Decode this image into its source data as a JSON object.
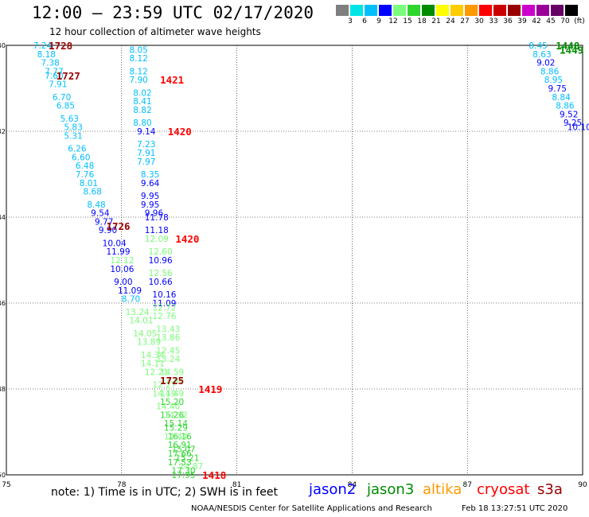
{
  "title": "12:00 — 23:59 UTC 02/17/2020",
  "subtitle": "12 hour collection of altimeter wave heights",
  "colorbar": {
    "unit": "(ft)",
    "labels": [
      "3",
      "6",
      "9",
      "12",
      "15",
      "18",
      "21",
      "24",
      "27",
      "30",
      "33",
      "36",
      "39",
      "42",
      "45",
      "70"
    ],
    "colors": [
      "#7f7f7f",
      "#00e5e5",
      "#00bfff",
      "#0000ff",
      "#7cfc7c",
      "#2ed62e",
      "#008c00",
      "#ffff00",
      "#ffcc00",
      "#ff9900",
      "#ff0000",
      "#cc0000",
      "#990000",
      "#cc00cc",
      "#990099",
      "#660066",
      "#000000"
    ]
  },
  "chart_data": {
    "type": "scatter",
    "title": "",
    "xlabel": "",
    "ylabel": "",
    "x_ticks": [
      "75",
      "78",
      "81",
      "84",
      "87",
      "90"
    ],
    "y_ticks": [
      "-40",
      "-42",
      "-44",
      "-46",
      "-48",
      "-50"
    ],
    "xlim": [
      75,
      90
    ],
    "ylim": [
      -50,
      -40
    ],
    "grid": true,
    "series": [
      {
        "name": "track-left",
        "points": [
          {
            "lon": 75.7,
            "lat": -40.0,
            "v": "7.24",
            "c": "#00bfff"
          },
          {
            "lon": 75.8,
            "lat": -40.2,
            "v": "8.18",
            "c": "#00bfff"
          },
          {
            "lon": 75.9,
            "lat": -40.4,
            "v": "7.38",
            "c": "#00bfff"
          },
          {
            "lon": 76.0,
            "lat": -40.6,
            "v": "7.77",
            "c": "#00bfff"
          },
          {
            "lon": 76.0,
            "lat": -40.7,
            "v": "7.60",
            "c": "#00bfff"
          },
          {
            "lon": 76.1,
            "lat": -40.9,
            "v": "7.91",
            "c": "#00bfff"
          },
          {
            "lon": 76.2,
            "lat": -41.2,
            "v": "6.70",
            "c": "#00bfff"
          },
          {
            "lon": 76.3,
            "lat": -41.4,
            "v": "6.85",
            "c": "#00bfff"
          },
          {
            "lon": 76.4,
            "lat": -41.7,
            "v": "5.63",
            "c": "#00bfff"
          },
          {
            "lon": 76.5,
            "lat": -41.9,
            "v": "5.83",
            "c": "#00bfff"
          },
          {
            "lon": 76.5,
            "lat": -42.1,
            "v": "5.31",
            "c": "#00bfff"
          },
          {
            "lon": 76.6,
            "lat": -42.4,
            "v": "6.26",
            "c": "#00bfff"
          },
          {
            "lon": 76.7,
            "lat": -42.6,
            "v": "6.60",
            "c": "#00bfff"
          },
          {
            "lon": 76.8,
            "lat": -42.8,
            "v": "6.48",
            "c": "#00bfff"
          },
          {
            "lon": 76.8,
            "lat": -43.0,
            "v": "7.76",
            "c": "#00bfff"
          },
          {
            "lon": 76.9,
            "lat": -43.2,
            "v": "8.01",
            "c": "#00bfff"
          },
          {
            "lon": 77.0,
            "lat": -43.4,
            "v": "8.68",
            "c": "#00bfff"
          },
          {
            "lon": 77.1,
            "lat": -43.7,
            "v": "8.48",
            "c": "#00bfff"
          },
          {
            "lon": 77.2,
            "lat": -43.9,
            "v": "9.54",
            "c": "#0000ff"
          },
          {
            "lon": 77.3,
            "lat": -44.1,
            "v": "9.77",
            "c": "#0000ff"
          },
          {
            "lon": 77.4,
            "lat": -44.3,
            "v": "9.90",
            "c": "#0000ff"
          },
          {
            "lon": 77.5,
            "lat": -44.6,
            "v": "10.04",
            "c": "#0000ff"
          },
          {
            "lon": 77.6,
            "lat": -44.8,
            "v": "11.99",
            "c": "#0000ff"
          },
          {
            "lon": 77.7,
            "lat": -45.0,
            "v": "12.12",
            "c": "#7cfc7c"
          },
          {
            "lon": 77.7,
            "lat": -45.2,
            "v": "10.06",
            "c": "#0000ff"
          },
          {
            "lon": 77.8,
            "lat": -45.5,
            "v": "9.00",
            "c": "#0000ff"
          },
          {
            "lon": 77.9,
            "lat": -45.7,
            "v": "11.09",
            "c": "#0000ff"
          },
          {
            "lon": 78.0,
            "lat": -45.9,
            "v": "8.70",
            "c": "#00bfff"
          },
          {
            "lon": 78.1,
            "lat": -46.2,
            "v": "13.24",
            "c": "#7cfc7c"
          },
          {
            "lon": 78.2,
            "lat": -46.4,
            "v": "14.01",
            "c": "#7cfc7c"
          },
          {
            "lon": 78.3,
            "lat": -46.7,
            "v": "14.05",
            "c": "#7cfc7c"
          },
          {
            "lon": 78.4,
            "lat": -46.9,
            "v": "13.89",
            "c": "#7cfc7c"
          },
          {
            "lon": 78.5,
            "lat": -47.2,
            "v": "14.34",
            "c": "#7cfc7c"
          },
          {
            "lon": 78.5,
            "lat": -47.4,
            "v": "14.11",
            "c": "#7cfc7c"
          },
          {
            "lon": 78.6,
            "lat": -47.6,
            "v": "12.21",
            "c": "#7cfc7c"
          },
          {
            "lon": 78.8,
            "lat": -47.9,
            "v": "12.27",
            "c": "#7cfc7c"
          },
          {
            "lon": 78.8,
            "lat": -48.1,
            "v": "14.19",
            "c": "#7cfc7c"
          },
          {
            "lon": 78.9,
            "lat": -48.4,
            "v": "14.40",
            "c": "#7cfc7c"
          },
          {
            "lon": 79.0,
            "lat": -48.6,
            "v": "15.26",
            "c": "#2ed62e"
          },
          {
            "lon": 79.1,
            "lat": -48.9,
            "v": "15.29",
            "c": "#2ed62e"
          },
          {
            "lon": 79.2,
            "lat": -49.1,
            "v": "16.16",
            "c": "#2ed62e"
          },
          {
            "lon": 79.3,
            "lat": -49.4,
            "v": "15.07",
            "c": "#2ed62e"
          },
          {
            "lon": 79.4,
            "lat": -49.6,
            "v": "15.21",
            "c": "#2ed62e"
          },
          {
            "lon": 79.5,
            "lat": -49.8,
            "v": "14.87",
            "c": "#7cfc7c"
          }
        ]
      },
      {
        "name": "track-center",
        "points": [
          {
            "lon": 78.2,
            "lat": -40.1,
            "v": "8.05",
            "c": "#00bfff"
          },
          {
            "lon": 78.2,
            "lat": -40.3,
            "v": "8.12",
            "c": "#00bfff"
          },
          {
            "lon": 78.2,
            "lat": -40.6,
            "v": "8.12",
            "c": "#00bfff"
          },
          {
            "lon": 78.2,
            "lat": -40.8,
            "v": "7.90",
            "c": "#00bfff"
          },
          {
            "lon": 78.3,
            "lat": -41.1,
            "v": "8.02",
            "c": "#00bfff"
          },
          {
            "lon": 78.3,
            "lat": -41.3,
            "v": "8.41",
            "c": "#00bfff"
          },
          {
            "lon": 78.3,
            "lat": -41.5,
            "v": "8.82",
            "c": "#00bfff"
          },
          {
            "lon": 78.3,
            "lat": -41.8,
            "v": "8.80",
            "c": "#00bfff"
          },
          {
            "lon": 78.4,
            "lat": -42.0,
            "v": "9.14",
            "c": "#0000ff"
          },
          {
            "lon": 78.4,
            "lat": -42.3,
            "v": "7.23",
            "c": "#00bfff"
          },
          {
            "lon": 78.4,
            "lat": -42.5,
            "v": "7.91",
            "c": "#00bfff"
          },
          {
            "lon": 78.4,
            "lat": -42.7,
            "v": "7.97",
            "c": "#00bfff"
          },
          {
            "lon": 78.5,
            "lat": -43.0,
            "v": "8.35",
            "c": "#00bfff"
          },
          {
            "lon": 78.5,
            "lat": -43.2,
            "v": "9.64",
            "c": "#0000ff"
          },
          {
            "lon": 78.5,
            "lat": -43.5,
            "v": "9.95",
            "c": "#0000ff"
          },
          {
            "lon": 78.5,
            "lat": -43.7,
            "v": "9.95",
            "c": "#0000ff"
          },
          {
            "lon": 78.6,
            "lat": -43.9,
            "v": "9.96",
            "c": "#0000ff"
          },
          {
            "lon": 78.6,
            "lat": -44.0,
            "v": "11.78",
            "c": "#0000ff"
          },
          {
            "lon": 78.6,
            "lat": -44.3,
            "v": "11.18",
            "c": "#0000ff"
          },
          {
            "lon": 78.6,
            "lat": -44.5,
            "v": "12.09",
            "c": "#7cfc7c"
          },
          {
            "lon": 78.7,
            "lat": -44.8,
            "v": "12.60",
            "c": "#7cfc7c"
          },
          {
            "lon": 78.7,
            "lat": -45.0,
            "v": "10.96",
            "c": "#0000ff"
          },
          {
            "lon": 78.7,
            "lat": -45.3,
            "v": "12.56",
            "c": "#7cfc7c"
          },
          {
            "lon": 78.7,
            "lat": -45.5,
            "v": "10.66",
            "c": "#0000ff"
          },
          {
            "lon": 78.8,
            "lat": -45.8,
            "v": "10.16",
            "c": "#0000ff"
          },
          {
            "lon": 78.8,
            "lat": -46.0,
            "v": "11.09",
            "c": "#0000ff"
          },
          {
            "lon": 78.8,
            "lat": -46.1,
            "v": "12.72",
            "c": "#7cfc7c"
          },
          {
            "lon": 78.8,
            "lat": -46.3,
            "v": "12.76",
            "c": "#7cfc7c"
          },
          {
            "lon": 78.9,
            "lat": -46.6,
            "v": "13.43",
            "c": "#7cfc7c"
          },
          {
            "lon": 78.9,
            "lat": -46.8,
            "v": "13.86",
            "c": "#7cfc7c"
          },
          {
            "lon": 78.9,
            "lat": -47.1,
            "v": "12.45",
            "c": "#7cfc7c"
          },
          {
            "lon": 78.9,
            "lat": -47.3,
            "v": "13.24",
            "c": "#7cfc7c"
          },
          {
            "lon": 79.0,
            "lat": -47.6,
            "v": "14.59",
            "c": "#7cfc7c"
          },
          {
            "lon": 79.0,
            "lat": -47.8,
            "v": "13.86",
            "c": "#7cfc7c"
          },
          {
            "lon": 79.0,
            "lat": -48.1,
            "v": "14.49",
            "c": "#7cfc7c"
          },
          {
            "lon": 79.0,
            "lat": -48.3,
            "v": "15.20",
            "c": "#2ed62e"
          },
          {
            "lon": 79.1,
            "lat": -48.6,
            "v": "14.32",
            "c": "#7cfc7c"
          },
          {
            "lon": 79.1,
            "lat": -48.8,
            "v": "15.14",
            "c": "#2ed62e"
          },
          {
            "lon": 79.1,
            "lat": -49.1,
            "v": "14.44",
            "c": "#7cfc7c"
          },
          {
            "lon": 79.2,
            "lat": -49.3,
            "v": "16.91",
            "c": "#2ed62e"
          },
          {
            "lon": 79.2,
            "lat": -49.5,
            "v": "17.66",
            "c": "#2ed62e"
          },
          {
            "lon": 79.2,
            "lat": -49.7,
            "v": "17.53",
            "c": "#2ed62e"
          },
          {
            "lon": 79.3,
            "lat": -49.9,
            "v": "17.30",
            "c": "#2ed62e"
          },
          {
            "lon": 79.3,
            "lat": -50.0,
            "v": "17.95",
            "c": "#2ed62e"
          }
        ]
      },
      {
        "name": "track-right",
        "points": [
          {
            "lon": 88.6,
            "lat": -40.0,
            "v": "8.45",
            "c": "#00bfff"
          },
          {
            "lon": 88.7,
            "lat": -40.2,
            "v": "8.63",
            "c": "#00bfff"
          },
          {
            "lon": 88.8,
            "lat": -40.4,
            "v": "9.02",
            "c": "#0000ff"
          },
          {
            "lon": 88.9,
            "lat": -40.6,
            "v": "8.86",
            "c": "#00bfff"
          },
          {
            "lon": 89.0,
            "lat": -40.8,
            "v": "8.95",
            "c": "#00bfff"
          },
          {
            "lon": 89.1,
            "lat": -41.0,
            "v": "9.75",
            "c": "#0000ff"
          },
          {
            "lon": 89.2,
            "lat": -41.2,
            "v": "8.84",
            "c": "#00bfff"
          },
          {
            "lon": 89.3,
            "lat": -41.4,
            "v": "8.86",
            "c": "#00bfff"
          },
          {
            "lon": 89.4,
            "lat": -41.6,
            "v": "9.52",
            "c": "#0000ff"
          },
          {
            "lon": 89.5,
            "lat": -41.8,
            "v": "9.25",
            "c": "#0000ff"
          },
          {
            "lon": 89.6,
            "lat": -41.9,
            "v": "10.10",
            "c": "#0000ff"
          }
        ]
      }
    ],
    "time_labels": [
      {
        "lon": 76.1,
        "lat": -40.0,
        "v": "1728",
        "c": "#990000"
      },
      {
        "lon": 76.3,
        "lat": -40.7,
        "v": "1727",
        "c": "#990000"
      },
      {
        "lon": 79.0,
        "lat": -40.8,
        "v": "1421",
        "c": "#ff0000"
      },
      {
        "lon": 79.2,
        "lat": -42.0,
        "v": "1420",
        "c": "#ff0000"
      },
      {
        "lon": 77.6,
        "lat": -44.2,
        "v": "1726",
        "c": "#990000"
      },
      {
        "lon": 79.4,
        "lat": -44.5,
        "v": "1420",
        "c": "#ff0000"
      },
      {
        "lon": 79.0,
        "lat": -47.8,
        "v": "1725",
        "c": "#990000"
      },
      {
        "lon": 80.0,
        "lat": -48.0,
        "v": "1419",
        "c": "#ff0000"
      },
      {
        "lon": 80.1,
        "lat": -50.0,
        "v": "1418",
        "c": "#ff0000"
      },
      {
        "lon": 89.3,
        "lat": -40.0,
        "v": "1448",
        "c": "#008c00"
      },
      {
        "lon": 89.4,
        "lat": -40.1,
        "v": "1449",
        "c": "#008c00"
      }
    ]
  },
  "note": "note:  1) Time is in UTC;  2) SWH is in feet",
  "legend": [
    {
      "label": "jason2",
      "color": "#0000ff"
    },
    {
      "label": "jason3",
      "color": "#008c00"
    },
    {
      "label": "altika",
      "color": "#ff9900"
    },
    {
      "label": "cryosat",
      "color": "#ff0000"
    },
    {
      "label": "s3a",
      "color": "#990000"
    }
  ],
  "credit": "NOAA/NESDIS Center for Satellite Applications and Research",
  "timestamp": "Feb 18 13:27:51 UTC 2020"
}
